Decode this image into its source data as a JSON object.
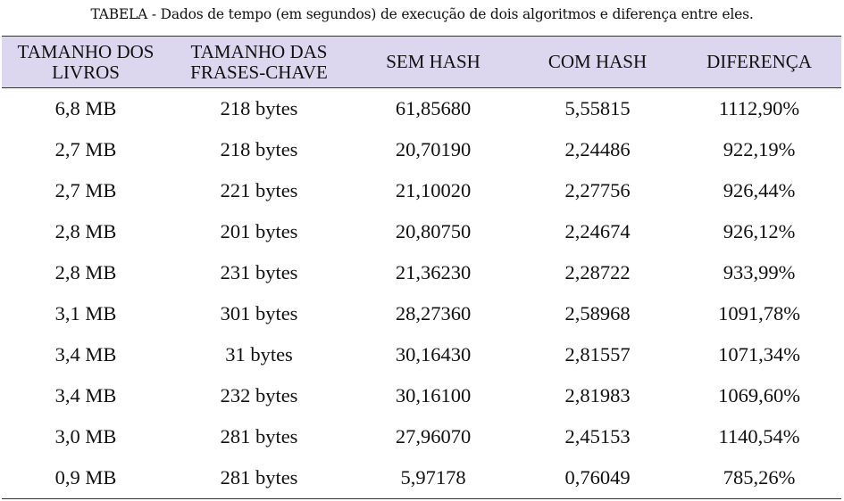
{
  "caption": "TABELA - Dados de tempo (em segundos) de execução de dois algoritmos e diferença entre eles.",
  "table": {
    "headers": [
      "TAMANHO DOS LIVROS",
      "TAMANHO DAS FRASES-CHAVE",
      "SEM HASH",
      "COM HASH",
      "DIFERENÇA"
    ],
    "rows": [
      [
        "6,8 MB",
        "218 bytes",
        "61,85680",
        "5,55815",
        "1112,90%"
      ],
      [
        "2,7 MB",
        "218 bytes",
        "20,70190",
        "2,24486",
        "922,19%"
      ],
      [
        "2,7 MB",
        "221 bytes",
        "21,10020",
        "2,27756",
        "926,44%"
      ],
      [
        "2,8 MB",
        "201 bytes",
        "20,80750",
        "2,24674",
        "926,12%"
      ],
      [
        "2,8 MB",
        "231 bytes",
        "21,36230",
        "2,28722",
        "933,99%"
      ],
      [
        "3,1 MB",
        "301 bytes",
        "28,27360",
        "2,58968",
        "1091,78%"
      ],
      [
        "3,4 MB",
        "31 bytes",
        "30,16430",
        "2,81557",
        "1071,34%"
      ],
      [
        "3,4 MB",
        "232 bytes",
        "30,16100",
        "2,81983",
        "1069,60%"
      ],
      [
        "3,0 MB",
        "281 bytes",
        "27,96070",
        "2,45153",
        "1140,54%"
      ],
      [
        "0,9 MB",
        "281 bytes",
        "5,97178",
        "0,76049",
        "785,26%"
      ]
    ]
  },
  "colors": {
    "header_background": "#dcd6ee",
    "rule": "#333333",
    "text": "#111111"
  }
}
